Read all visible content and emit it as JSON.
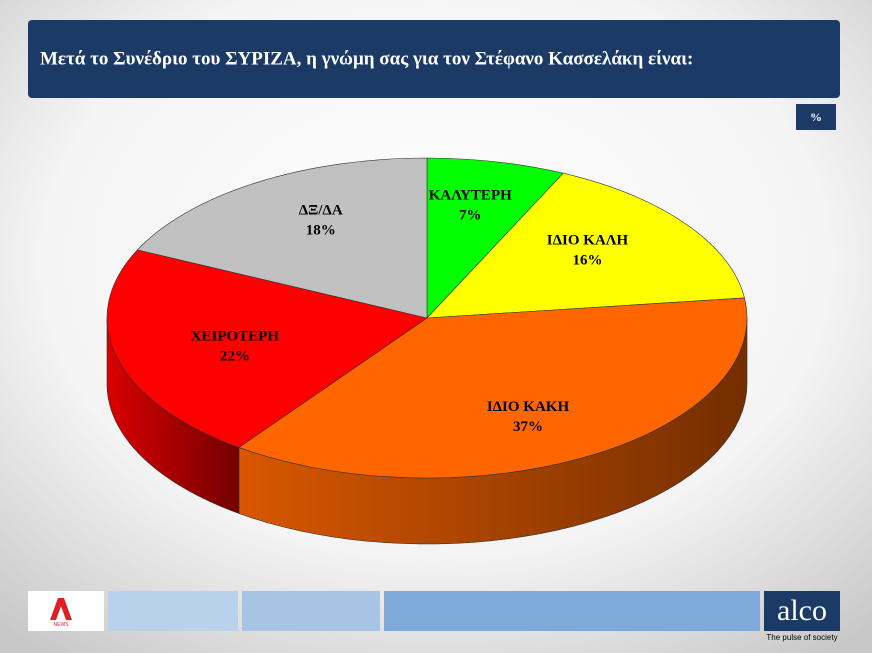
{
  "title": "Μετά το Συνέδριο του ΣΥΡΙΖΑ, η γνώμη σας για τον Στέφανο Κασσελάκη είναι:",
  "unit_badge": "%",
  "chart_data": {
    "type": "pie",
    "categories": [
      "ΚΑΛΥΤΕΡΗ",
      "ΙΔΙΟ ΚΑΛΗ",
      "ΙΔΙΟ ΚΑΚΗ",
      "ΧΕΙΡΟΤΕΡΗ",
      "ΔΞ/ΔΑ"
    ],
    "values": [
      7,
      16,
      37,
      22,
      18
    ],
    "value_labels": [
      "7%",
      "16%",
      "37%",
      "22%",
      "18%"
    ],
    "colors": [
      "#00ff00",
      "#ffff00",
      "#ff6600",
      "#ff0000",
      "#c0c0c0"
    ]
  },
  "footer": {
    "news_logo": "NEWS",
    "brand": "alco",
    "tagline": "The pulse of society"
  }
}
